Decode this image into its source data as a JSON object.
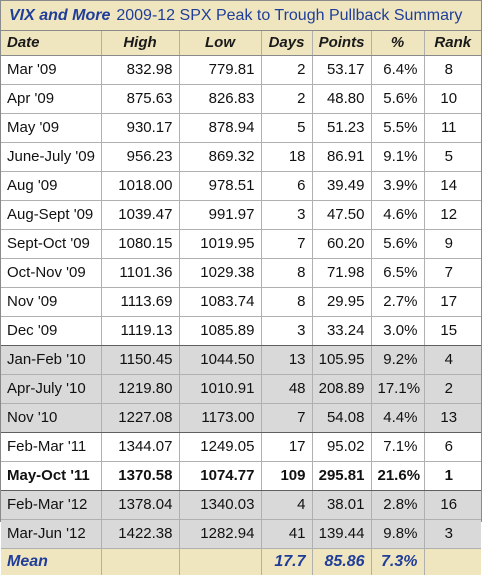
{
  "title": {
    "brand": "VIX and More",
    "subtitle": "2009-12 SPX Peak to Trough Pullback Summary"
  },
  "columns": [
    "Date",
    "High",
    "Low",
    "Days",
    "Points",
    "%",
    "Rank"
  ],
  "rows": [
    {
      "date": "Mar '09",
      "high": "832.98",
      "low": "779.81",
      "days": "2",
      "points": "53.17",
      "pct": "6.4%",
      "rank": "8",
      "shade": false,
      "bold": false
    },
    {
      "date": "Apr '09",
      "high": "875.63",
      "low": "826.83",
      "days": "2",
      "points": "48.80",
      "pct": "5.6%",
      "rank": "10",
      "shade": false,
      "bold": false
    },
    {
      "date": "May '09",
      "high": "930.17",
      "low": "878.94",
      "days": "5",
      "points": "51.23",
      "pct": "5.5%",
      "rank": "11",
      "shade": false,
      "bold": false
    },
    {
      "date": "June-July '09",
      "high": "956.23",
      "low": "869.32",
      "days": "18",
      "points": "86.91",
      "pct": "9.1%",
      "rank": "5",
      "shade": false,
      "bold": false
    },
    {
      "date": "Aug '09",
      "high": "1018.00",
      "low": "978.51",
      "days": "6",
      "points": "39.49",
      "pct": "3.9%",
      "rank": "14",
      "shade": false,
      "bold": false
    },
    {
      "date": "Aug-Sept '09",
      "high": "1039.47",
      "low": "991.97",
      "days": "3",
      "points": "47.50",
      "pct": "4.6%",
      "rank": "12",
      "shade": false,
      "bold": false
    },
    {
      "date": "Sept-Oct '09",
      "high": "1080.15",
      "low": "1019.95",
      "days": "7",
      "points": "60.20",
      "pct": "5.6%",
      "rank": "9",
      "shade": false,
      "bold": false
    },
    {
      "date": "Oct-Nov '09",
      "high": "1101.36",
      "low": "1029.38",
      "days": "8",
      "points": "71.98",
      "pct": "6.5%",
      "rank": "7",
      "shade": false,
      "bold": false
    },
    {
      "date": "Nov '09",
      "high": "1113.69",
      "low": "1083.74",
      "days": "8",
      "points": "29.95",
      "pct": "2.7%",
      "rank": "17",
      "shade": false,
      "bold": false
    },
    {
      "date": "Dec '09",
      "high": "1119.13",
      "low": "1085.89",
      "days": "3",
      "points": "33.24",
      "pct": "3.0%",
      "rank": "15",
      "shade": false,
      "bold": false,
      "group_end": true
    },
    {
      "date": "Jan-Feb '10",
      "high": "1150.45",
      "low": "1044.50",
      "days": "13",
      "points": "105.95",
      "pct": "9.2%",
      "rank": "4",
      "shade": true,
      "bold": false
    },
    {
      "date": "Apr-July '10",
      "high": "1219.80",
      "low": "1010.91",
      "days": "48",
      "points": "208.89",
      "pct": "17.1%",
      "rank": "2",
      "shade": true,
      "bold": false
    },
    {
      "date": "Nov '10",
      "high": "1227.08",
      "low": "1173.00",
      "days": "7",
      "points": "54.08",
      "pct": "4.4%",
      "rank": "13",
      "shade": true,
      "bold": false,
      "group_end": true
    },
    {
      "date": "Feb-Mar '11",
      "high": "1344.07",
      "low": "1249.05",
      "days": "17",
      "points": "95.02",
      "pct": "7.1%",
      "rank": "6",
      "shade": false,
      "bold": false
    },
    {
      "date": "May-Oct '11",
      "high": "1370.58",
      "low": "1074.77",
      "days": "109",
      "points": "295.81",
      "pct": "21.6%",
      "rank": "1",
      "shade": false,
      "bold": true,
      "group_end": true
    },
    {
      "date": "Feb-Mar '12",
      "high": "1378.04",
      "low": "1340.03",
      "days": "4",
      "points": "38.01",
      "pct": "2.8%",
      "rank": "16",
      "shade": true,
      "bold": false
    },
    {
      "date": "Mar-Jun '12",
      "high": "1422.38",
      "low": "1282.94",
      "days": "41",
      "points": "139.44",
      "pct": "9.8%",
      "rank": "3",
      "shade": true,
      "bold": false
    }
  ],
  "footer": {
    "label": "Mean",
    "days": "17.7",
    "points": "85.86",
    "pct": "7.3%"
  },
  "colors": {
    "header_bg": "#efe6c0",
    "title_text": "#1f3d99",
    "shade_bg": "#d9d9d9"
  }
}
